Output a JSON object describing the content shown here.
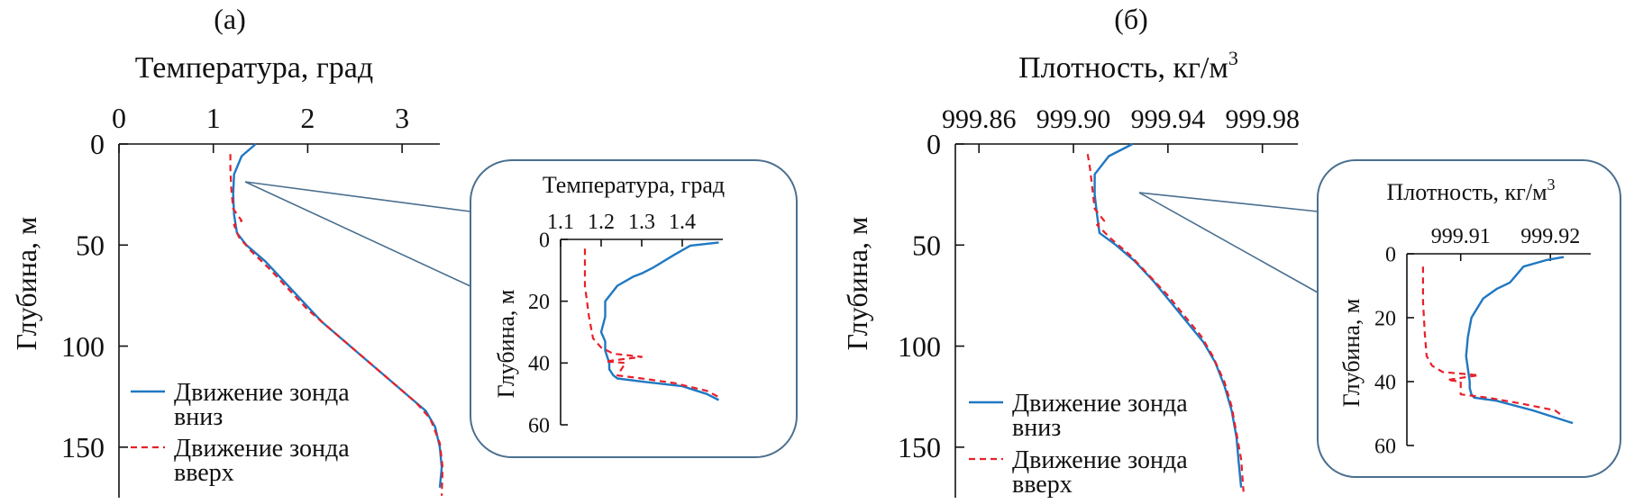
{
  "panels": [
    {
      "panel_label": "(а)",
      "legend": {
        "down_label_line1": "Движение зонда",
        "down_label_line2": "вниз",
        "up_label_line1": "Движение зонда",
        "up_label_line2": "вверх"
      },
      "colors": {
        "down": "#1f78c1",
        "up": "#e8202a",
        "frame": "#4b6f8f"
      },
      "chart_data": {
        "type": "line",
        "xlabel": "Температура, град",
        "ylabel": "Глубина, м",
        "x_ticks": [
          "0",
          "1",
          "2",
          "3"
        ],
        "x_tick_values": [
          0,
          1,
          2,
          3
        ],
        "xlim": [
          0,
          3.4
        ],
        "y_ticks": [
          "0",
          "50",
          "100",
          "150"
        ],
        "y_tick_values": [
          0,
          50,
          100,
          150
        ],
        "ylim": [
          0,
          175
        ],
        "y_inverted": true,
        "x_axis_position": "top",
        "series": [
          {
            "name": "Движение зонда вниз",
            "style": "solid",
            "x": [
              1.45,
              1.3,
              1.22,
              1.21,
              1.22,
              1.25,
              1.35,
              1.55,
              1.75,
              1.95,
              2.15,
              2.35,
              2.55,
              2.75,
              2.95,
              3.1,
              3.25,
              3.35,
              3.4,
              3.42,
              3.4
            ],
            "y": [
              0,
              6,
              15,
              25,
              35,
              44,
              50,
              58,
              68,
              78,
              88,
              96,
              104,
              112,
              120,
              126,
              132,
              140,
              150,
              160,
              170
            ]
          },
          {
            "name": "Движение зонда вверх",
            "style": "dashed",
            "x": [
              1.18,
              1.18,
              1.19,
              1.21,
              1.3,
              1.22,
              1.27,
              1.4,
              1.6,
              1.8,
              2.0,
              2.2,
              2.4,
              2.6,
              2.8,
              3.0,
              3.15,
              3.3,
              3.4,
              3.43,
              3.42
            ],
            "y": [
              5,
              12,
              22,
              32,
              38,
              40,
              46,
              53,
              62,
              72,
              82,
              90,
              98,
              106,
              114,
              122,
              128,
              136,
              148,
              160,
              174
            ]
          }
        ]
      },
      "inset": {
        "chart_data": {
          "type": "line",
          "xlabel": "Температура, град",
          "ylabel": "Глубина, м",
          "x_ticks": [
            "1.1",
            "1.2",
            "1.3",
            "1.4"
          ],
          "x_tick_values": [
            1.1,
            1.2,
            1.3,
            1.4
          ],
          "xlim": [
            1.1,
            1.5
          ],
          "y_ticks": [
            "0",
            "20",
            "40",
            "60"
          ],
          "y_tick_values": [
            0,
            20,
            40,
            60
          ],
          "ylim": [
            0,
            60
          ],
          "y_inverted": true,
          "series": [
            {
              "name": "Движение зонда вниз",
              "style": "solid",
              "x": [
                1.49,
                1.42,
                1.38,
                1.33,
                1.3,
                1.28,
                1.24,
                1.21,
                1.21,
                1.2,
                1.21,
                1.21,
                1.22,
                1.22,
                1.23,
                1.24,
                1.3,
                1.4,
                1.46,
                1.49
              ],
              "y": [
                1,
                2,
                5,
                9,
                11,
                12,
                15,
                20,
                25,
                30,
                33,
                36,
                40,
                42,
                44,
                45,
                46,
                47.5,
                50,
                52
              ]
            },
            {
              "name": "Движение зонда вверх",
              "style": "dashed",
              "x": [
                1.16,
                1.16,
                1.17,
                1.18,
                1.2,
                1.23,
                1.3,
                1.21,
                1.26,
                1.24,
                1.3,
                1.38,
                1.46,
                1.49
              ],
              "y": [
                3,
                15,
                25,
                32,
                35,
                37,
                38,
                39.5,
                40,
                44,
                45,
                46.5,
                49,
                51
              ]
            }
          ]
        }
      }
    },
    {
      "panel_label": "(б)",
      "legend": {
        "down_label_line1": "Движение зонда",
        "down_label_line2": "вниз",
        "up_label_line1": "Движение зонда",
        "up_label_line2": "вверх"
      },
      "colors": {
        "down": "#1f78c1",
        "up": "#e8202a",
        "frame": "#4b6f8f"
      },
      "chart_data": {
        "type": "line",
        "xlabel": "Плотность, кг/м",
        "xlabel_sup": "3",
        "ylabel": "Глубина, м",
        "x_ticks": [
          "999.86",
          "999.90",
          "999.94",
          "999.98"
        ],
        "x_tick_values": [
          999.86,
          999.9,
          999.94,
          999.98
        ],
        "xlim": [
          999.85,
          999.995
        ],
        "y_ticks": [
          "0",
          "50",
          "100",
          "150"
        ],
        "y_tick_values": [
          0,
          50,
          100,
          150
        ],
        "ylim": [
          0,
          175
        ],
        "y_inverted": true,
        "x_axis_position": "top",
        "series": [
          {
            "name": "Движение зонда вниз",
            "style": "solid",
            "x": [
              999.925,
              999.915,
              999.909,
              999.909,
              999.91,
              999.911,
              999.918,
              999.926,
              999.934,
              999.941,
              999.948,
              999.955,
              999.96,
              999.964,
              999.967,
              999.969,
              999.97,
              999.971
            ],
            "y": [
              0,
              6,
              15,
              25,
              35,
              44,
              50,
              58,
              68,
              78,
              88,
              98,
              108,
              120,
              132,
              145,
              158,
              170
            ]
          },
          {
            "name": "Движение зонда вверх",
            "style": "dashed",
            "x": [
              999.906,
              999.907,
              999.908,
              999.909,
              999.913,
              999.91,
              999.916,
              999.924,
              999.932,
              999.94,
              999.947,
              999.954,
              999.959,
              999.964,
              999.967,
              999.969,
              999.971,
              999.972
            ],
            "y": [
              5,
              12,
              22,
              32,
              38,
              40,
              47,
              55,
              65,
              75,
              85,
              95,
              105,
              118,
              130,
              143,
              156,
              172
            ]
          }
        ]
      },
      "inset": {
        "chart_data": {
          "type": "line",
          "xlabel": "Плотность, кг/м",
          "xlabel_sup": "3",
          "ylabel": "Глубина, м",
          "x_ticks": [
            "999.91",
            "999.92"
          ],
          "x_tick_values": [
            999.91,
            999.92
          ],
          "xlim": [
            999.904,
            999.9245
          ],
          "y_ticks": [
            "0",
            "20",
            "40",
            "60"
          ],
          "y_tick_values": [
            0,
            20,
            40,
            60
          ],
          "ylim": [
            0,
            60
          ],
          "y_inverted": true,
          "series": [
            {
              "name": "Движение зонда вниз",
              "style": "solid",
              "x": [
                999.9215,
                999.9195,
                999.917,
                999.9155,
                999.914,
                999.9125,
                999.9112,
                999.9108,
                999.9106,
                999.9108,
                999.911,
                999.911,
                999.9112,
                999.9115,
                999.914,
                999.918,
                999.9225
              ],
              "y": [
                1,
                2,
                4,
                9,
                11,
                14,
                20,
                26,
                32,
                36,
                40,
                42,
                44,
                45,
                46,
                49,
                53
              ]
            },
            {
              "name": "Движение зонда вверх",
              "style": "dashed",
              "x": [
                999.9058,
                999.9058,
                999.906,
                999.9062,
                999.9068,
                999.908,
                999.912,
                999.9085,
                999.91,
                999.91,
                999.913,
                999.917,
                999.9205,
                999.9215
              ],
              "y": [
                4,
                15,
                25,
                32,
                35,
                37,
                38,
                39.5,
                40,
                44,
                45,
                47,
                49,
                51
              ]
            }
          ]
        }
      }
    }
  ]
}
